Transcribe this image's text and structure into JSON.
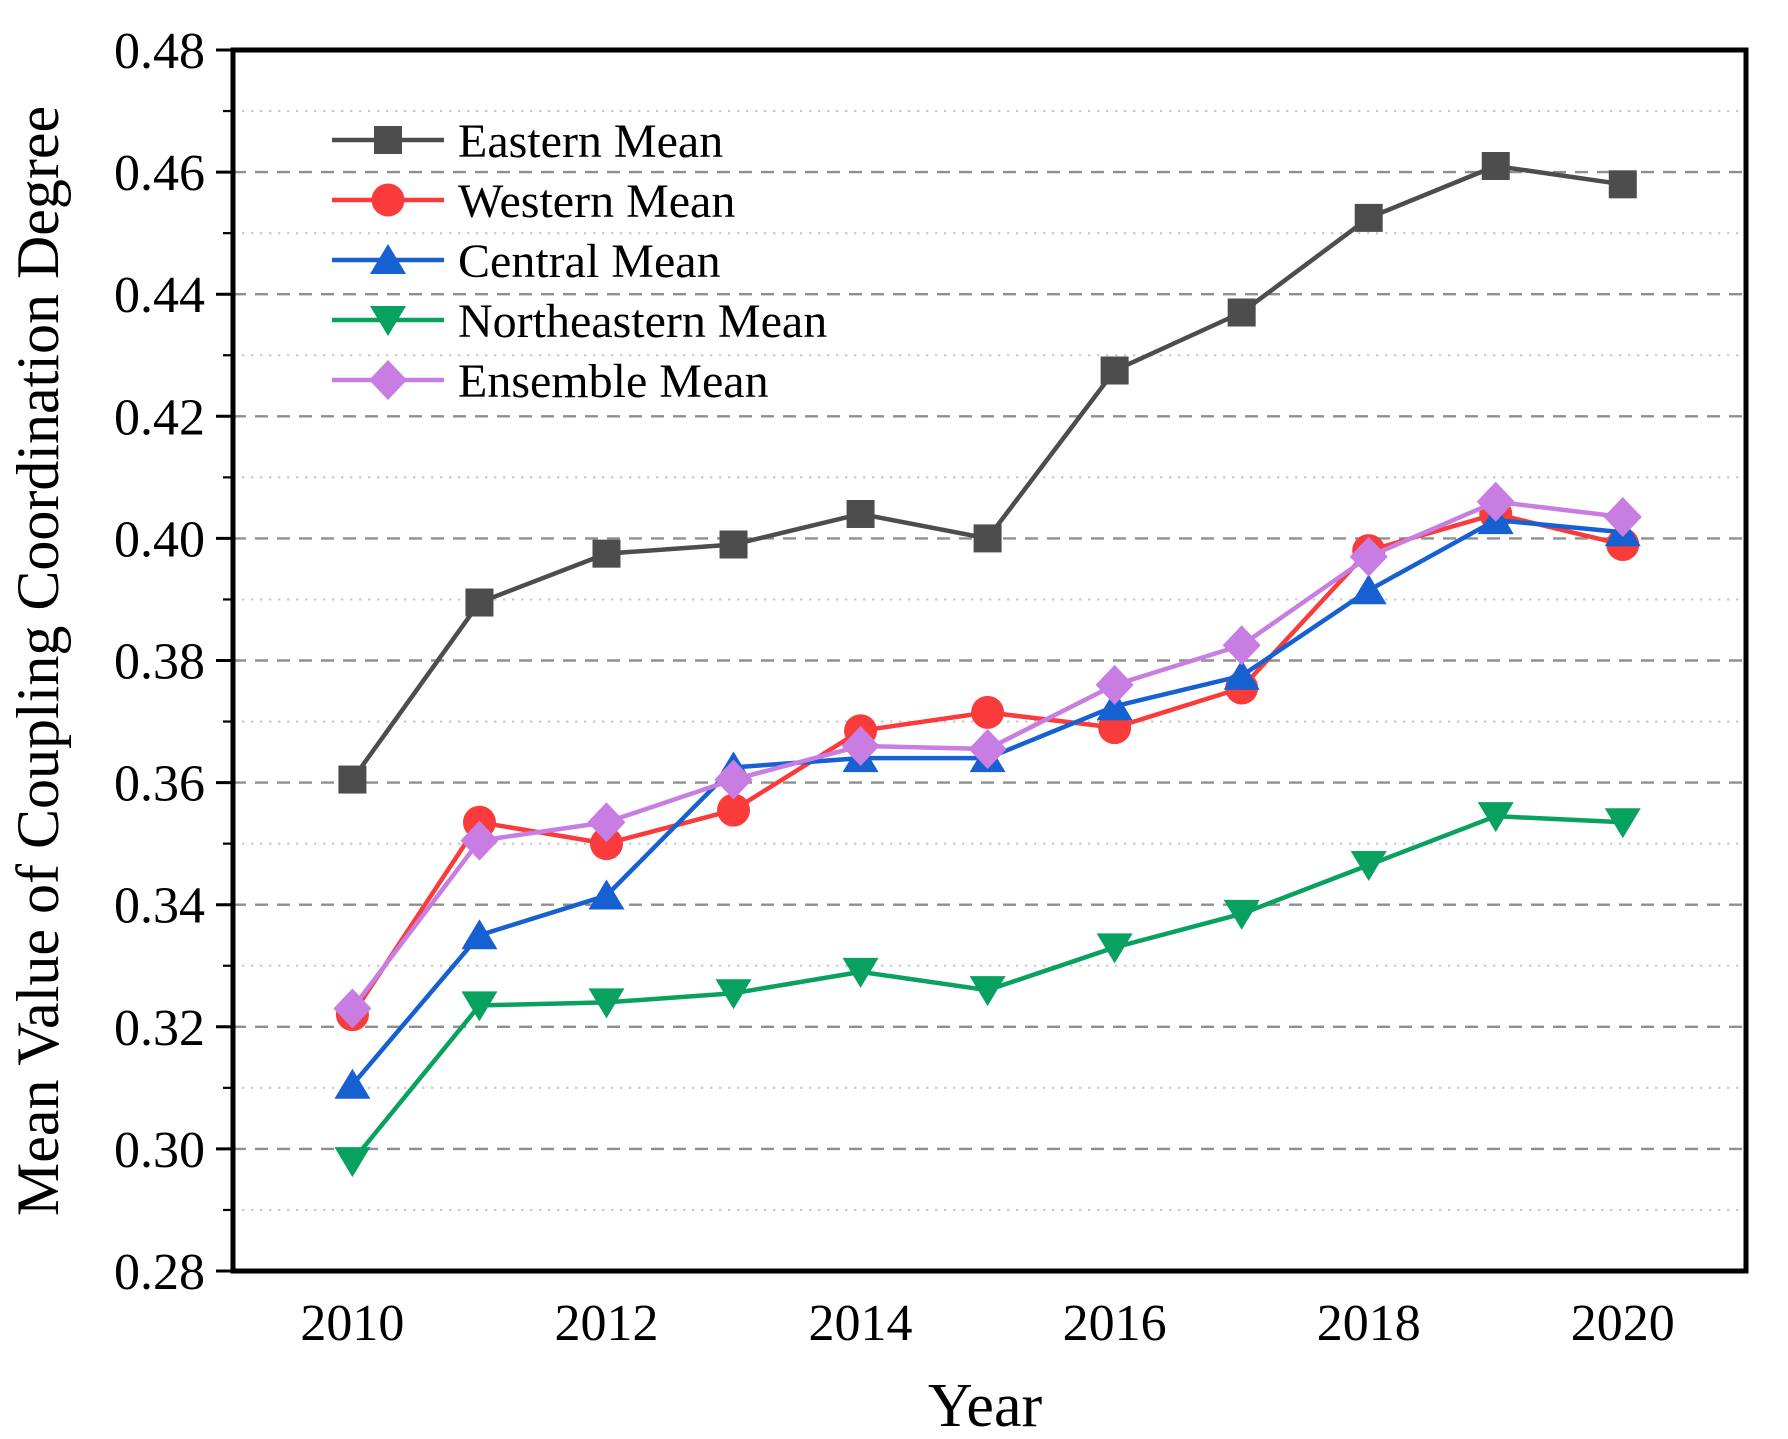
{
  "chart_data": {
    "type": "line",
    "title": "",
    "xlabel": "Year",
    "ylabel": "Mean Value of Coupling Coordination Degree",
    "x": [
      2010,
      2011,
      2012,
      2013,
      2014,
      2015,
      2016,
      2017,
      2018,
      2019,
      2020
    ],
    "x_tick_years": [
      2010,
      2012,
      2014,
      2016,
      2018,
      2020
    ],
    "x_tick_labels": [
      "2010",
      "2012",
      "2014",
      "2016",
      "2018",
      "2020"
    ],
    "y_tick_values": [
      0.28,
      0.3,
      0.32,
      0.34,
      0.36,
      0.38,
      0.4,
      0.42,
      0.44,
      0.46,
      0.48
    ],
    "y_tick_labels": [
      "0.28",
      "0.30",
      "0.32",
      "0.34",
      "0.36",
      "0.38",
      "0.40",
      "0.42",
      "0.44",
      "0.46",
      "0.48"
    ],
    "xlim": [
      2009.06,
      2020.97
    ],
    "ylim": [
      0.28,
      0.48
    ],
    "grid": {
      "major_style": "dashed",
      "minor_style": "dotted",
      "major_step": 0.02,
      "minor_step": 0.01,
      "vertical": false
    },
    "legend_position": "upper-left",
    "legend_frame": false,
    "axis_color": "#000000",
    "background": "#ffffff",
    "series": [
      {
        "name": "Eastern Mean",
        "color": "#4d4d4d",
        "marker": "square",
        "values": [
          0.3605,
          0.3895,
          0.3975,
          0.399,
          0.404,
          0.4,
          0.4275,
          0.437,
          0.4525,
          0.461,
          0.458
        ]
      },
      {
        "name": "Western Mean",
        "color": "#f93b3b",
        "marker": "circle",
        "values": [
          0.322,
          0.3535,
          0.35,
          0.3555,
          0.3685,
          0.3715,
          0.369,
          0.3755,
          0.398,
          0.404,
          0.399
        ]
      },
      {
        "name": "Central Mean",
        "color": "#1660d2",
        "marker": "triangle-up",
        "values": [
          0.3105,
          0.335,
          0.3415,
          0.3625,
          0.364,
          0.364,
          0.3725,
          0.3775,
          0.3915,
          0.403,
          0.401
        ]
      },
      {
        "name": "Northeastern Mean",
        "color": "#09a15f",
        "marker": "triangle-down",
        "values": [
          0.298,
          0.3235,
          0.324,
          0.3255,
          0.329,
          0.326,
          0.333,
          0.3385,
          0.3465,
          0.3545,
          0.3535
        ]
      },
      {
        "name": "Ensemble Mean",
        "color": "#c77de1",
        "marker": "diamond",
        "values": [
          0.323,
          0.3505,
          0.3535,
          0.3605,
          0.366,
          0.3655,
          0.376,
          0.3825,
          0.397,
          0.406,
          0.4035
        ]
      }
    ]
  }
}
